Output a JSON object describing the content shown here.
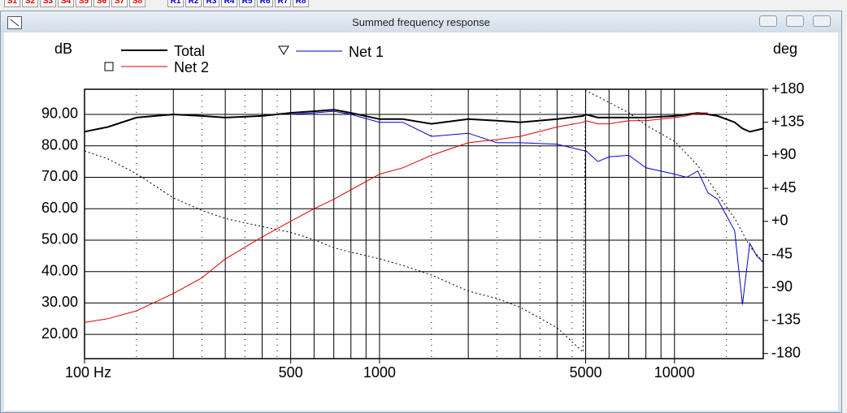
{
  "toolbar": {
    "s_buttons": [
      "S1",
      "S2",
      "S3",
      "S4",
      "S5",
      "S6",
      "S7",
      "S8"
    ],
    "r_buttons": [
      "R1",
      "R2",
      "R3",
      "R4",
      "R5",
      "R6",
      "R7",
      "R8"
    ]
  },
  "window": {
    "title": "Summed frequency response"
  },
  "chart_data": {
    "type": "line",
    "ylabel": "dB",
    "y2label": "deg",
    "x": [
      100,
      120,
      150,
      200,
      250,
      300,
      400,
      500,
      600,
      700,
      800,
      1000,
      1200,
      1500,
      2000,
      2500,
      3000,
      4000,
      4900,
      5000,
      5500,
      6000,
      7000,
      8000,
      10000,
      11000,
      12000,
      13000,
      14000,
      16000,
      17000,
      18000,
      19000,
      20000
    ],
    "xscale": "log",
    "xlim": [
      100,
      20000
    ],
    "xticks": [
      {
        "value": 100,
        "label": "100 Hz"
      },
      500,
      1000,
      5000,
      10000
    ],
    "ylim": [
      12.3,
      98
    ],
    "yticks": [
      {
        "value": 20,
        "label": "20.00"
      },
      {
        "value": 30,
        "label": "30.00"
      },
      {
        "value": 40,
        "label": "40.00"
      },
      {
        "value": 50,
        "label": "50.00"
      },
      {
        "value": 60,
        "label": "60.00"
      },
      {
        "value": 70,
        "label": "70.00"
      },
      {
        "value": 80,
        "label": "80.00"
      },
      {
        "value": 90,
        "label": "90.00"
      }
    ],
    "y2lim": [
      -187,
      180
    ],
    "y2ticks": [
      {
        "value": 180,
        "label": "+180"
      },
      {
        "value": 135,
        "label": "+135"
      },
      {
        "value": 90,
        "label": "+90"
      },
      {
        "value": 45,
        "label": "+45"
      },
      {
        "value": 0,
        "label": "+0"
      },
      -45,
      -90,
      -135,
      -180
    ],
    "grid": true,
    "series": [
      {
        "name": "Total",
        "color": "#000000",
        "width": 2,
        "values": [
          84.5,
          86,
          89,
          90,
          89.5,
          89,
          89.5,
          90.5,
          91,
          91.5,
          90.5,
          88.5,
          88.5,
          87,
          88.5,
          88,
          87.5,
          88.5,
          89.5,
          90,
          89,
          89,
          89,
          89,
          89.5,
          90,
          90.5,
          90,
          89.5,
          87.5,
          85.5,
          84.5,
          85,
          85.5
        ]
      },
      {
        "name": "Net 1",
        "color": "#0000cc",
        "width": 1,
        "marker": "triangle",
        "values": [
          null,
          null,
          null,
          null,
          null,
          null,
          null,
          90,
          90.5,
          91,
          90,
          87.5,
          87.5,
          83,
          84,
          81,
          81,
          80.5,
          78.5,
          78.5,
          75,
          76.5,
          77,
          73,
          71,
          70,
          72,
          65,
          63,
          53,
          29.5,
          49,
          45,
          43
        ]
      },
      {
        "name": "Net 2",
        "color": "#dd0000",
        "width": 1,
        "marker": "square",
        "values": [
          23.8,
          25,
          27.5,
          33,
          38,
          44,
          51,
          56,
          60,
          63,
          66,
          71,
          73,
          77,
          81,
          82,
          83,
          86,
          87.5,
          88,
          87,
          87,
          88,
          88,
          89,
          89.5,
          90.5,
          90.5,
          null,
          null,
          null,
          null,
          null,
          null
        ]
      },
      {
        "color": "#000000",
        "width": 1,
        "dashed": true,
        "axis": "y2",
        "values": [
          96,
          85,
          65,
          32,
          15,
          4,
          -7,
          -15,
          -25,
          -36,
          -42,
          -51,
          -60,
          -73,
          -95,
          -105,
          -117,
          -145,
          -178,
          178,
          170,
          162,
          148,
          131,
          109,
          92,
          76,
          57,
          37,
          4,
          -15,
          -34,
          -45,
          -56
        ]
      }
    ]
  }
}
